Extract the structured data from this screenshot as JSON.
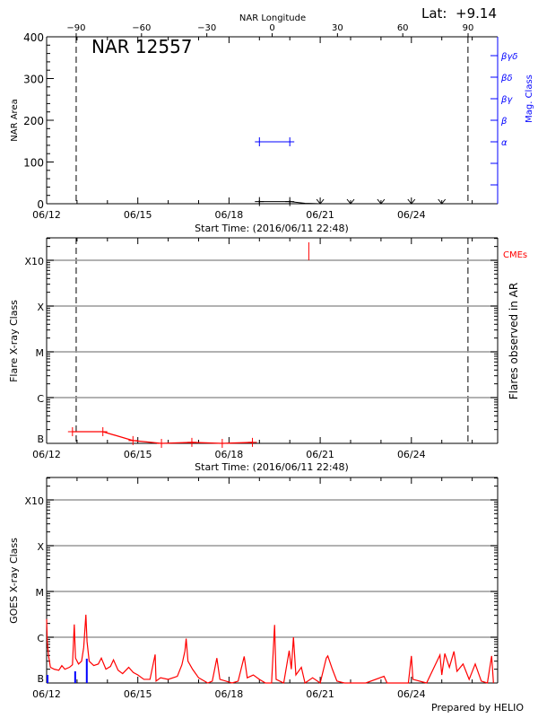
{
  "header": {
    "longitude_label": "NAR Longitude",
    "lat_label": "Lat:  +9.14",
    "region_title": "NAR 12557",
    "start_time_label": "Start Time: (2016/06/11 22:48)",
    "credit": "Prepared by HELIO"
  },
  "colors": {
    "axis": "#000000",
    "grid": "#999999",
    "goes": "#ff0000",
    "goes_secondary": "#0000ff",
    "flares": "#ff0000",
    "mag_class": "#0000ff",
    "cme": "#ff0000"
  },
  "chart_data": [
    {
      "type": "line",
      "panel": "area",
      "title": "NAR 12557",
      "xlabel": "Start Time: (2016/06/11 22:48)",
      "ylabel": "NAR Area",
      "y2label": "Mag. Class",
      "top_axis_label": "NAR Longitude",
      "xlim": [
        "2016-06-12T00:00",
        "2016-06-26T20:10"
      ],
      "ylim": [
        0,
        400
      ],
      "x_ticks": [
        {
          "date": "2016-06-12",
          "label": "06/12"
        },
        {
          "date": "2016-06-15",
          "label": "06/15"
        },
        {
          "date": "2016-06-18",
          "label": "06/18"
        },
        {
          "date": "2016-06-21",
          "label": "06/21"
        },
        {
          "date": "2016-06-24",
          "label": "06/24"
        }
      ],
      "y_ticks": [
        {
          "value": 0,
          "label": "0"
        },
        {
          "value": 100,
          "label": "100"
        },
        {
          "value": 200,
          "label": "200"
        },
        {
          "value": 300,
          "label": "300"
        },
        {
          "value": 400,
          "label": "400"
        }
      ],
      "longitude_ticks": [
        {
          "value": -90,
          "label": "−90"
        },
        {
          "value": -60,
          "label": "−60"
        },
        {
          "value": -30,
          "label": "−30"
        },
        {
          "value": 0,
          "label": "0"
        },
        {
          "value": 30,
          "label": "30"
        },
        {
          "value": 60,
          "label": "60"
        },
        {
          "value": 90,
          "label": "90"
        }
      ],
      "mag_class_ticks": [
        "",
        "",
        "α",
        "β",
        "βγ",
        "βδ",
        "βγδ"
      ],
      "limb_crossings": [
        "2016-06-12T23:20",
        "2016-06-25T20:40"
      ],
      "area_series": [
        [
          "2016-06-19T00:00",
          5
        ],
        [
          "2016-06-20T00:00",
          5
        ],
        [
          "2016-06-20T12:00",
          1
        ],
        [
          "2016-06-21T00:00",
          0
        ]
      ],
      "area_markers": [
        "2016-06-19T00:00",
        "2016-06-20T00:00"
      ],
      "zero_area_markers": [
        "2016-06-21T00:00",
        "2016-06-22T00:00",
        "2016-06-23T00:00",
        "2016-06-24T00:00",
        "2016-06-25T00:00"
      ],
      "mag_class_series": [
        [
          "2016-06-19T00:00",
          "α"
        ],
        [
          "2016-06-20T00:00",
          "α"
        ]
      ]
    },
    {
      "type": "line",
      "panel": "flares",
      "xlabel": "Start Time: (2016/06/11 22:48)",
      "ylabel": "Flare X-ray Class",
      "y2label": "Flares observed in AR",
      "cme_label": "CMEs",
      "yscale": "log",
      "ylim_flux": [
        1e-07,
        0.0032
      ],
      "grid": true,
      "class_ticks": [
        {
          "flux": 1e-07,
          "label": "B"
        },
        {
          "flux": 1e-06,
          "label": "C"
        },
        {
          "flux": 1e-05,
          "label": "M"
        },
        {
          "flux": 0.0001,
          "label": "X"
        },
        {
          "flux": 0.001,
          "label": "X10"
        }
      ],
      "flares": [
        [
          "2016-06-12T20:24",
          1.8e-07
        ],
        [
          "2016-06-13T20:24",
          1.8e-07
        ],
        [
          "2016-06-14T20:10",
          1.15e-07
        ],
        [
          "2016-06-15T18:40",
          1e-07
        ],
        [
          "2016-06-16T18:40",
          1.05e-07
        ],
        [
          "2016-06-17T18:40",
          1e-07
        ],
        [
          "2016-06-18T18:30",
          1.05e-07
        ]
      ],
      "cmes": [
        "2016-06-20T15:00"
      ]
    },
    {
      "type": "line",
      "panel": "goes",
      "ylabel": "GOES X-ray Class",
      "yscale": "log",
      "ylim_flux": [
        1e-07,
        0.0032
      ],
      "grid": true,
      "class_ticks": [
        {
          "flux": 1e-07,
          "label": "B"
        },
        {
          "flux": 1e-06,
          "label": "C"
        },
        {
          "flux": 1e-05,
          "label": "M"
        },
        {
          "flux": 0.0001,
          "label": "X"
        },
        {
          "flux": 0.001,
          "label": "X10"
        }
      ],
      "series": [
        [
          "2016-06-12T00:00",
          2.5e-06
        ],
        [
          "2016-06-12T00:30",
          8e-07
        ],
        [
          "2016-06-12T01:30",
          4e-07
        ],
        [
          "2016-06-12T03:00",
          2.2e-07
        ],
        [
          "2016-06-12T06:00",
          2e-07
        ],
        [
          "2016-06-12T09:36",
          1.9e-07
        ],
        [
          "2016-06-12T12:00",
          2.4e-07
        ],
        [
          "2016-06-12T14:24",
          2e-07
        ],
        [
          "2016-06-12T18:00",
          2.2e-07
        ],
        [
          "2016-06-12T20:24",
          2.5e-07
        ],
        [
          "2016-06-12T21:50",
          1.9e-06
        ],
        [
          "2016-06-12T22:48",
          3.5e-07
        ],
        [
          "2016-06-13T01:12",
          2.6e-07
        ],
        [
          "2016-06-13T03:36",
          3e-07
        ],
        [
          "2016-06-13T05:17",
          6e-07
        ],
        [
          "2016-06-13T07:00",
          3.1e-06
        ],
        [
          "2016-06-13T07:55",
          8e-07
        ],
        [
          "2016-06-13T09:36",
          3e-07
        ],
        [
          "2016-06-13T13:12",
          2.4e-07
        ],
        [
          "2016-06-13T16:48",
          2.6e-07
        ],
        [
          "2016-06-13T19:12",
          3.5e-07
        ],
        [
          "2016-06-13T22:48",
          2e-07
        ],
        [
          "2016-06-14T02:24",
          2.3e-07
        ],
        [
          "2016-06-14T04:48",
          3.2e-07
        ],
        [
          "2016-06-14T08:24",
          1.9e-07
        ],
        [
          "2016-06-14T12:00",
          1.6e-07
        ],
        [
          "2016-06-14T16:48",
          2.2e-07
        ],
        [
          "2016-06-14T20:24",
          1.7e-07
        ],
        [
          "2016-06-15T00:00",
          1.5e-07
        ],
        [
          "2016-06-15T04:48",
          1.2e-07
        ],
        [
          "2016-06-15T09:36",
          1.2e-07
        ],
        [
          "2016-06-15T13:41",
          4.2e-07
        ],
        [
          "2016-06-15T14:24",
          1.1e-07
        ],
        [
          "2016-06-15T18:00",
          1.3e-07
        ],
        [
          "2016-06-16T00:00",
          1.2e-07
        ],
        [
          "2016-06-16T07:12",
          1.4e-07
        ],
        [
          "2016-06-16T10:48",
          2.5e-07
        ],
        [
          "2016-06-16T13:12",
          5e-07
        ],
        [
          "2016-06-16T14:10",
          9.3e-07
        ],
        [
          "2016-06-16T15:36",
          3e-07
        ],
        [
          "2016-06-16T19:12",
          2e-07
        ],
        [
          "2016-06-17T00:00",
          1.3e-07
        ],
        [
          "2016-06-17T07:12",
          1e-07
        ],
        [
          "2016-06-17T10:48",
          1.1e-07
        ],
        [
          "2016-06-17T14:24",
          3.5e-07
        ],
        [
          "2016-06-17T16:48",
          1.2e-07
        ],
        [
          "2016-06-17T21:36",
          1.1e-07
        ],
        [
          "2016-06-18T02:24",
          1e-07
        ],
        [
          "2016-06-18T07:12",
          1.1e-07
        ],
        [
          "2016-06-18T12:00",
          3.8e-07
        ],
        [
          "2016-06-18T14:24",
          1.3e-07
        ],
        [
          "2016-06-18T19:12",
          1.5e-07
        ],
        [
          "2016-06-19T00:00",
          1.2e-07
        ],
        [
          "2016-06-19T04:48",
          1e-07
        ],
        [
          "2016-06-19T09:36",
          1e-07
        ],
        [
          "2016-06-19T12:00",
          1.86e-06
        ],
        [
          "2016-06-19T13:12",
          1.2e-07
        ],
        [
          "2016-06-19T19:12",
          1e-07
        ],
        [
          "2016-06-19T23:31",
          5.1e-07
        ],
        [
          "2016-06-20T01:12",
          2e-07
        ],
        [
          "2016-06-20T02:53",
          1e-06
        ],
        [
          "2016-06-20T04:48",
          1.5e-07
        ],
        [
          "2016-06-20T09:07",
          2.2e-07
        ],
        [
          "2016-06-20T12:00",
          1e-07
        ],
        [
          "2016-06-20T18:00",
          1.3e-07
        ],
        [
          "2016-06-21T00:00",
          1e-07
        ],
        [
          "2016-06-21T04:48",
          3.5e-07
        ],
        [
          "2016-06-21T06:00",
          3.9e-07
        ],
        [
          "2016-06-21T09:36",
          2e-07
        ],
        [
          "2016-06-21T13:12",
          1.1e-07
        ],
        [
          "2016-06-21T19:12",
          1e-07
        ],
        [
          "2016-06-22T12:00",
          1e-07
        ],
        [
          "2016-06-23T02:24",
          1.4e-07
        ],
        [
          "2016-06-23T04:48",
          1e-07
        ],
        [
          "2016-06-23T21:36",
          1e-07
        ],
        [
          "2016-06-24T00:00",
          3.9e-07
        ],
        [
          "2016-06-24T01:12",
          1.2e-07
        ],
        [
          "2016-06-24T12:00",
          1e-07
        ],
        [
          "2016-06-24T22:34",
          4.1e-07
        ],
        [
          "2016-06-25T00:00",
          1.5e-07
        ],
        [
          "2016-06-25T02:24",
          4.4e-07
        ],
        [
          "2016-06-25T06:00",
          2.2e-07
        ],
        [
          "2016-06-25T09:36",
          4.9e-07
        ],
        [
          "2016-06-25T12:00",
          1.8e-07
        ],
        [
          "2016-06-25T16:48",
          2.6e-07
        ],
        [
          "2016-06-25T21:36",
          1.2e-07
        ],
        [
          "2016-06-26T02:24",
          2.6e-07
        ],
        [
          "2016-06-26T07:12",
          1.1e-07
        ],
        [
          "2016-06-26T12:00",
          1e-07
        ],
        [
          "2016-06-26T15:22",
          3.9e-07
        ],
        [
          "2016-06-26T16:48",
          1e-07
        ]
      ],
      "secondary_series": [
        [
          "2016-06-12T00:00",
          1.5e-07
        ],
        [
          "2016-06-12T21:50",
          1.8e-07
        ],
        [
          "2016-06-13T07:00",
          3.4e-07
        ]
      ]
    }
  ]
}
